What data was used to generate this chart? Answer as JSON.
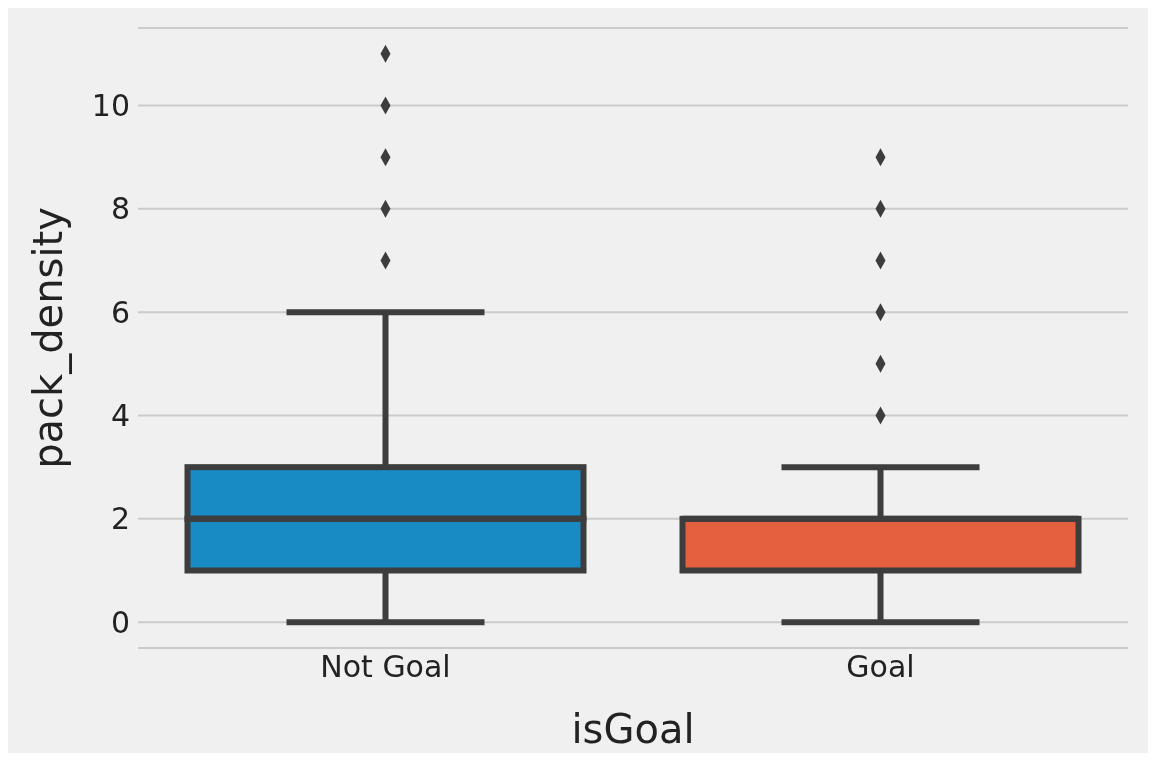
{
  "chart_data": {
    "type": "box",
    "xlabel": "isGoal",
    "ylabel": "pack_density",
    "categories": [
      "Not Goal",
      "Goal"
    ],
    "colors": [
      "#188bc4",
      "#e5603f"
    ],
    "boxes": [
      {
        "low": 0,
        "q1": 1,
        "median": 2,
        "q3": 3,
        "high": 6,
        "outliers": [
          7,
          8,
          9,
          10,
          11
        ]
      },
      {
        "low": 0,
        "q1": 1,
        "median": 2,
        "q3": 2,
        "high": 3,
        "outliers": [
          4,
          5,
          6,
          7,
          8,
          9
        ]
      }
    ],
    "ylim": [
      -0.5,
      11.5
    ],
    "yticks": [
      0,
      2,
      4,
      6,
      8,
      10
    ],
    "grid": "y"
  }
}
